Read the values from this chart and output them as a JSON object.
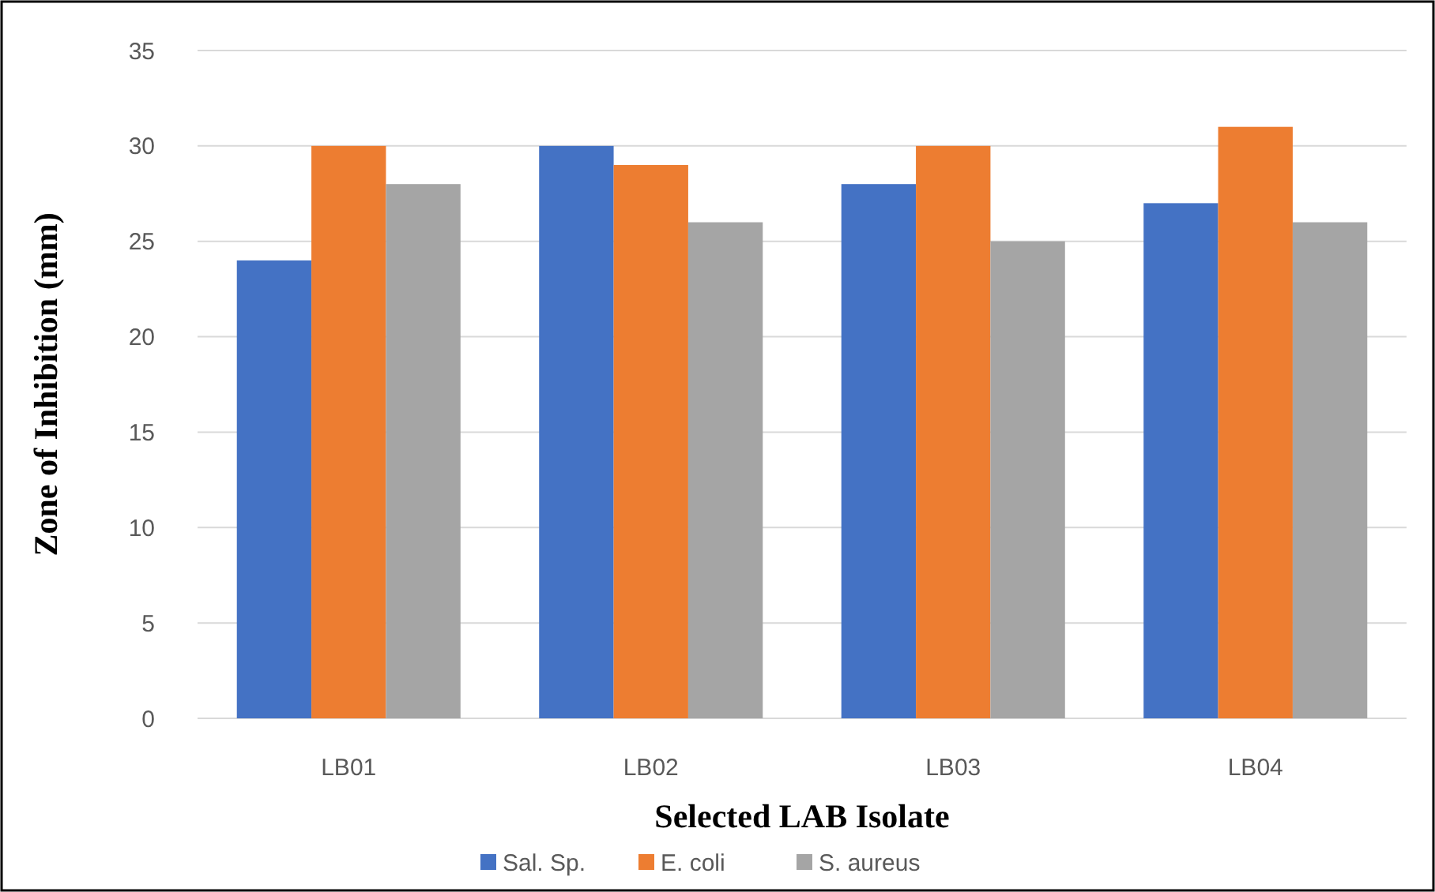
{
  "chart_data": {
    "type": "bar",
    "xlabel": "Selected LAB Isolate",
    "ylabel": "Zone of Inhibition (mm)",
    "categories": [
      "LB01",
      "LB02",
      "LB03",
      "LB04"
    ],
    "series": [
      {
        "name": "Sal. Sp.",
        "color": "#4472c4",
        "values": [
          24,
          30,
          28,
          27
        ]
      },
      {
        "name": "E. coli",
        "color": "#ed7d31",
        "values": [
          30,
          29,
          30,
          31
        ]
      },
      {
        "name": "S. aureus",
        "color": "#a5a5a5",
        "values": [
          28,
          26,
          25,
          26
        ]
      }
    ],
    "ylim": [
      0,
      35
    ],
    "yticks": [
      0,
      5,
      10,
      15,
      20,
      25,
      30,
      35
    ],
    "grid": "y",
    "legend": "bottom"
  }
}
